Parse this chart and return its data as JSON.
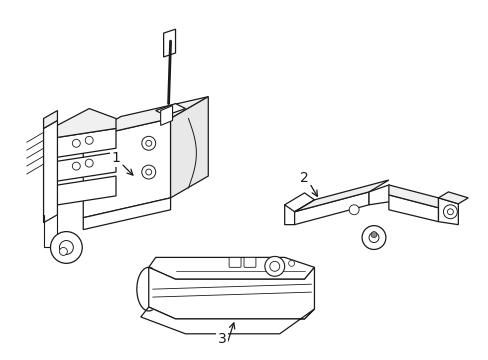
{
  "background_color": "#ffffff",
  "line_color": "#1a1a1a",
  "lw": 0.9,
  "fig_w": 4.89,
  "fig_h": 3.6,
  "dpi": 100
}
